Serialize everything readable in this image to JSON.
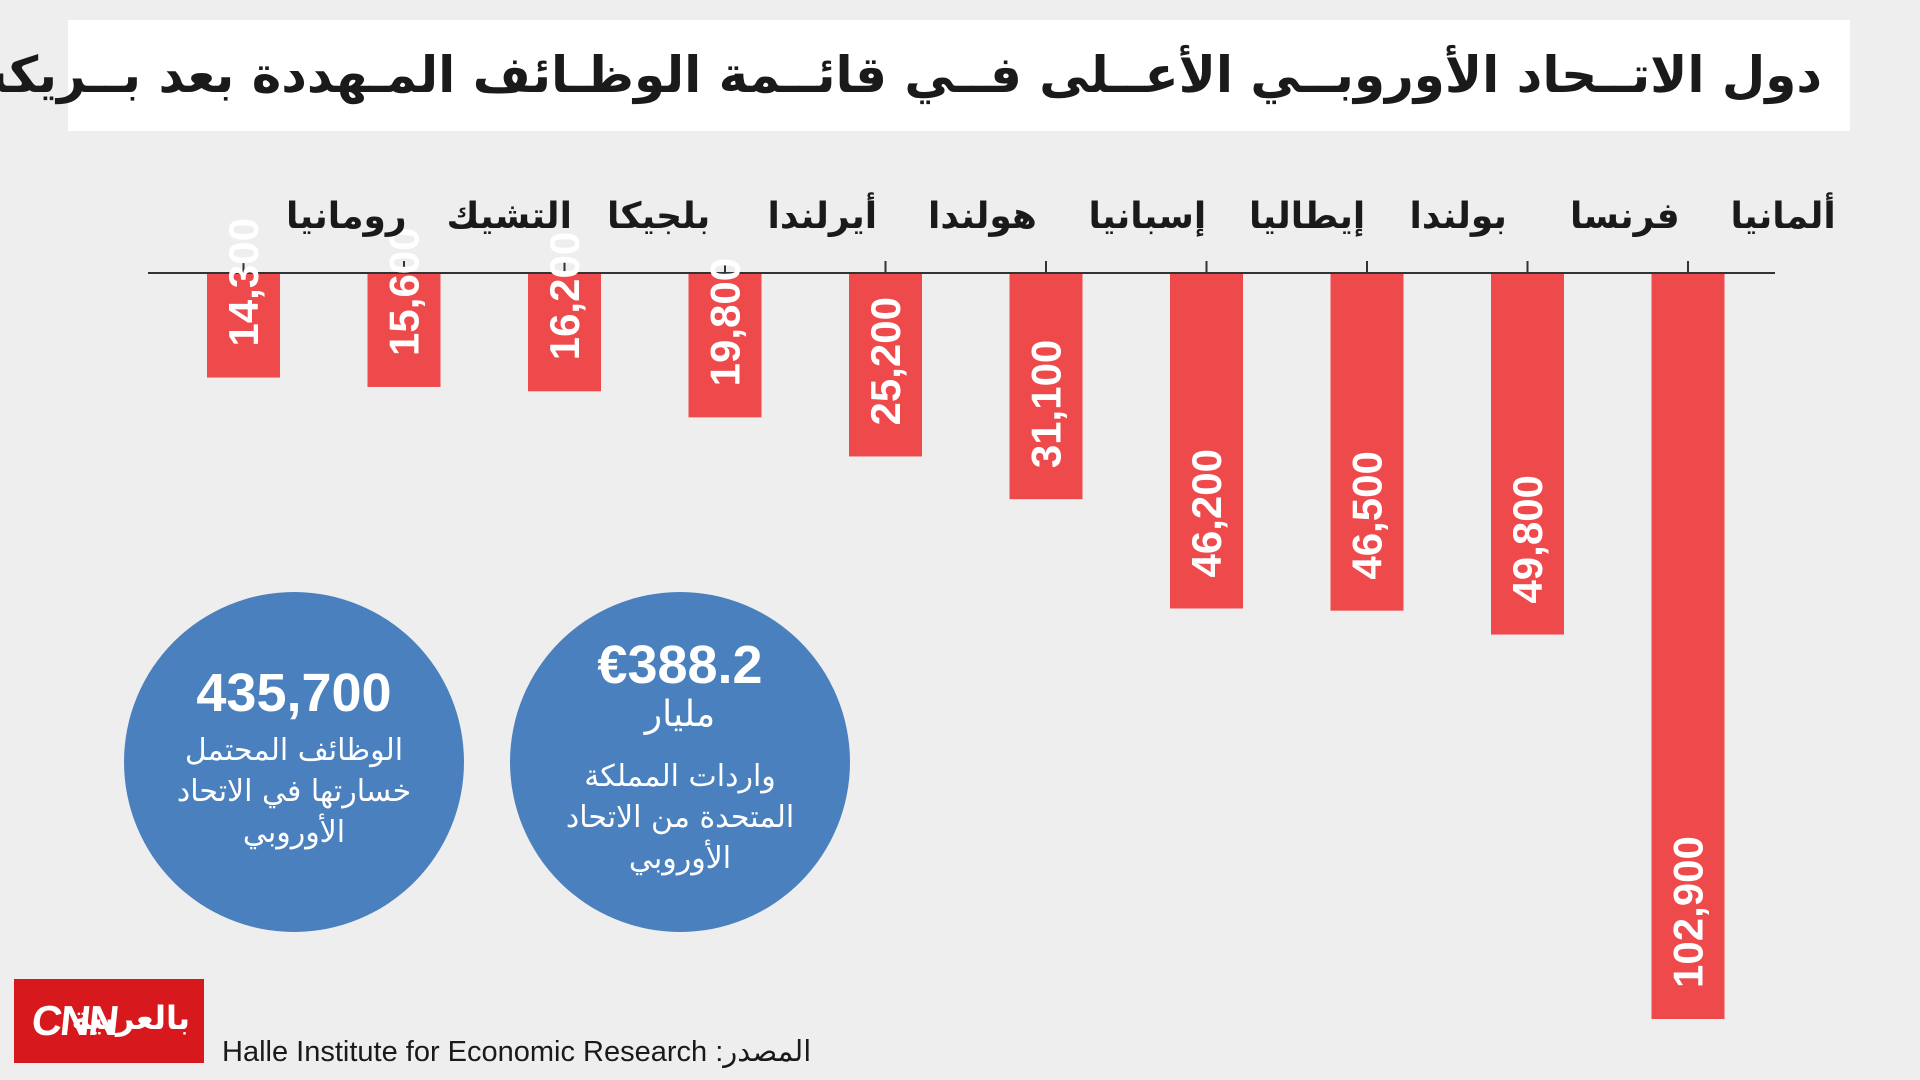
{
  "title": "دول الاتــحاد الأوروبــي الأعــلى فــي قائــمة الوظـائف المـهددة بعد بــريكست",
  "chart_data": {
    "type": "bar",
    "orientation": "vertical-downward",
    "title": "دول الاتــحاد الأوروبــي الأعــلى فــي قائــمة الوظـائف المـهددة بعد بــريكست",
    "categories": [
      "ألمانيا",
      "فرنسا",
      "بولندا",
      "إيطاليا",
      "إسبانيا",
      "هولندا",
      "أيرلندا",
      "بلجيكا",
      "التشيك",
      "رومانيا"
    ],
    "values": [
      102900,
      49800,
      46500,
      46200,
      31100,
      25200,
      19800,
      16200,
      15600,
      14300
    ],
    "labels": [
      "102,900",
      "49,800",
      "46,500",
      "46,200",
      "31,100",
      "25,200",
      "19,800",
      "16,200",
      "15,600",
      "14,300"
    ],
    "ylim": [
      0,
      102900
    ],
    "bar_color": "#ee4a4c",
    "category_order": "right-to-left"
  },
  "stats": {
    "jobs": {
      "number": "435,700",
      "caption_lines": [
        "الوظائف المحتمل",
        "خسارتها في الاتحاد",
        "الأوروبي"
      ]
    },
    "imports": {
      "number": "€388.2",
      "unit": "مليار",
      "caption_lines": [
        "واردات المملكة",
        "المتحدة من الاتحاد",
        "الأوروبي"
      ]
    }
  },
  "source": "Halle Institute for Economic Research :المصدر",
  "logo": {
    "cnn": "CNN",
    "arabic": "بالعربية"
  },
  "colors": {
    "background": "#efeeee",
    "bar": "#ee4a4c",
    "circle": "#4a80be",
    "logo": "#d7191e"
  }
}
